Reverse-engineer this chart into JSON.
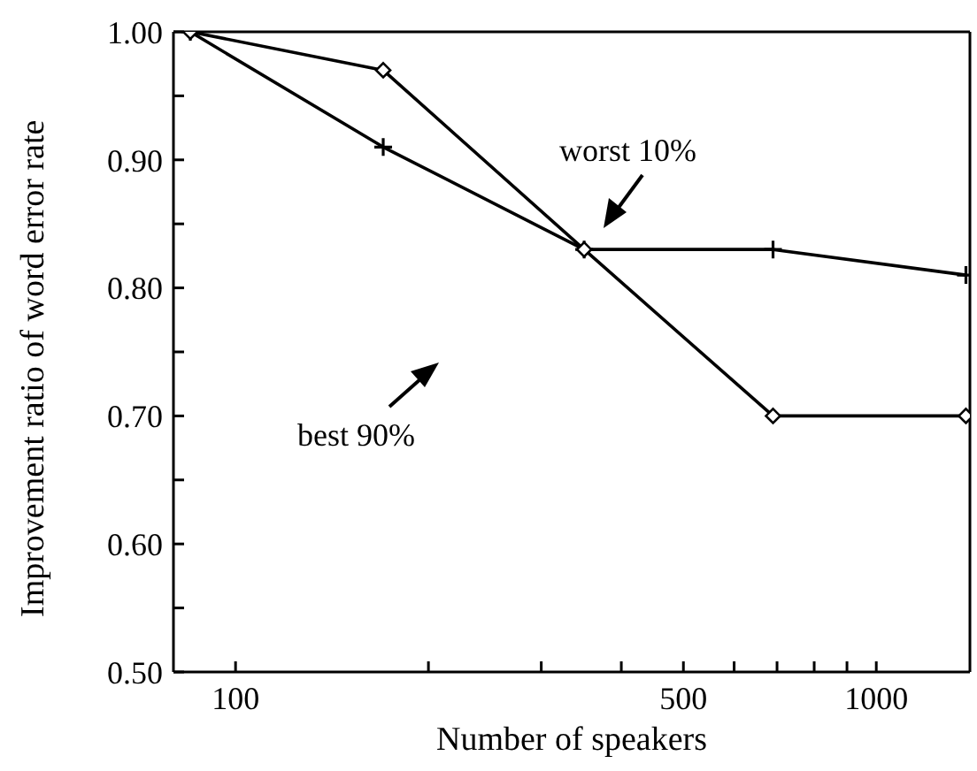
{
  "chart_data": {
    "type": "line",
    "xlabel": "Number of speakers",
    "ylabel": "Improvement ratio of word error rate",
    "log": "x",
    "x": [
      85,
      170,
      350,
      690,
      1380
    ],
    "series": [
      {
        "color": "#000000",
        "marker": "cross",
        "values": [
          1.0,
          0.91,
          0.83,
          0.83,
          0.81
        ]
      },
      {
        "color": "#000000",
        "marker": "diamond",
        "values": [
          1.0,
          0.97,
          0.83,
          0.7,
          0.7
        ]
      }
    ],
    "xlim": [
      80,
      1400
    ],
    "xticks": [
      100,
      {
        "value": 200,
        "label": null
      },
      {
        "value": 300,
        "label": null
      },
      {
        "value": 400,
        "label": null
      },
      500,
      {
        "value": 600,
        "label": null
      },
      {
        "value": 700,
        "label": null
      },
      {
        "value": 800,
        "label": null
      },
      {
        "value": 900,
        "label": null
      },
      1000
    ],
    "ylim": [
      0.5,
      1.0
    ],
    "yticks": [
      {
        "value": 0.5,
        "label": "0.50"
      },
      {
        "value": 0.55,
        "label": null
      },
      {
        "value": 0.6,
        "label": "0.60"
      },
      {
        "value": 0.65,
        "label": null
      },
      {
        "value": 0.7,
        "label": "0.70"
      },
      {
        "value": 0.75,
        "label": null
      },
      {
        "value": 0.8,
        "label": "0.80"
      },
      {
        "value": 0.85,
        "label": null
      },
      {
        "value": 0.9,
        "label": "0.90"
      },
      {
        "value": 0.95,
        "label": null
      },
      {
        "value": 1.0,
        "label": "1.00"
      }
    ],
    "grid": false,
    "line_style": "solid",
    "annotations": [
      "worst 10%",
      "best 90%"
    ]
  }
}
